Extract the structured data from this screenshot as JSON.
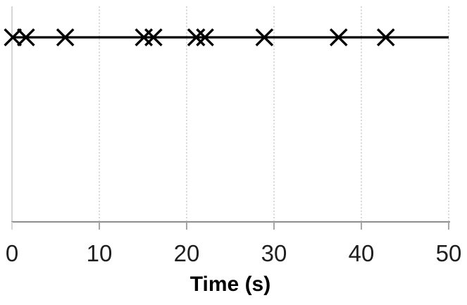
{
  "chart_data": {
    "type": "scatter",
    "subtype": "timeline-event-plot",
    "x": [
      0.1,
      1.6,
      6.1,
      15.1,
      16.2,
      21.1,
      22.1,
      28.9,
      37.4,
      42.8
    ],
    "y": [
      0,
      0,
      0,
      0,
      0,
      0,
      0,
      0,
      0,
      0
    ],
    "marker": "x",
    "connecting_line": true,
    "xlabel": "Time (s)",
    "xlim": [
      0,
      50
    ],
    "xticks": [
      0,
      10,
      20,
      30,
      40,
      50
    ],
    "grid": "vertical-dotted",
    "legend": "none",
    "colors": {
      "series": "#000000",
      "baseline": "#000000",
      "gridline_dotted": "#c2c2c2",
      "zero_gridline": "#d6d6d6",
      "axis_line": "#8f8f8f",
      "tick_mark": "#a6a6a6",
      "tick_label": "#1f1f1f",
      "axis_title": "#000000",
      "background": "#ffffff"
    }
  }
}
